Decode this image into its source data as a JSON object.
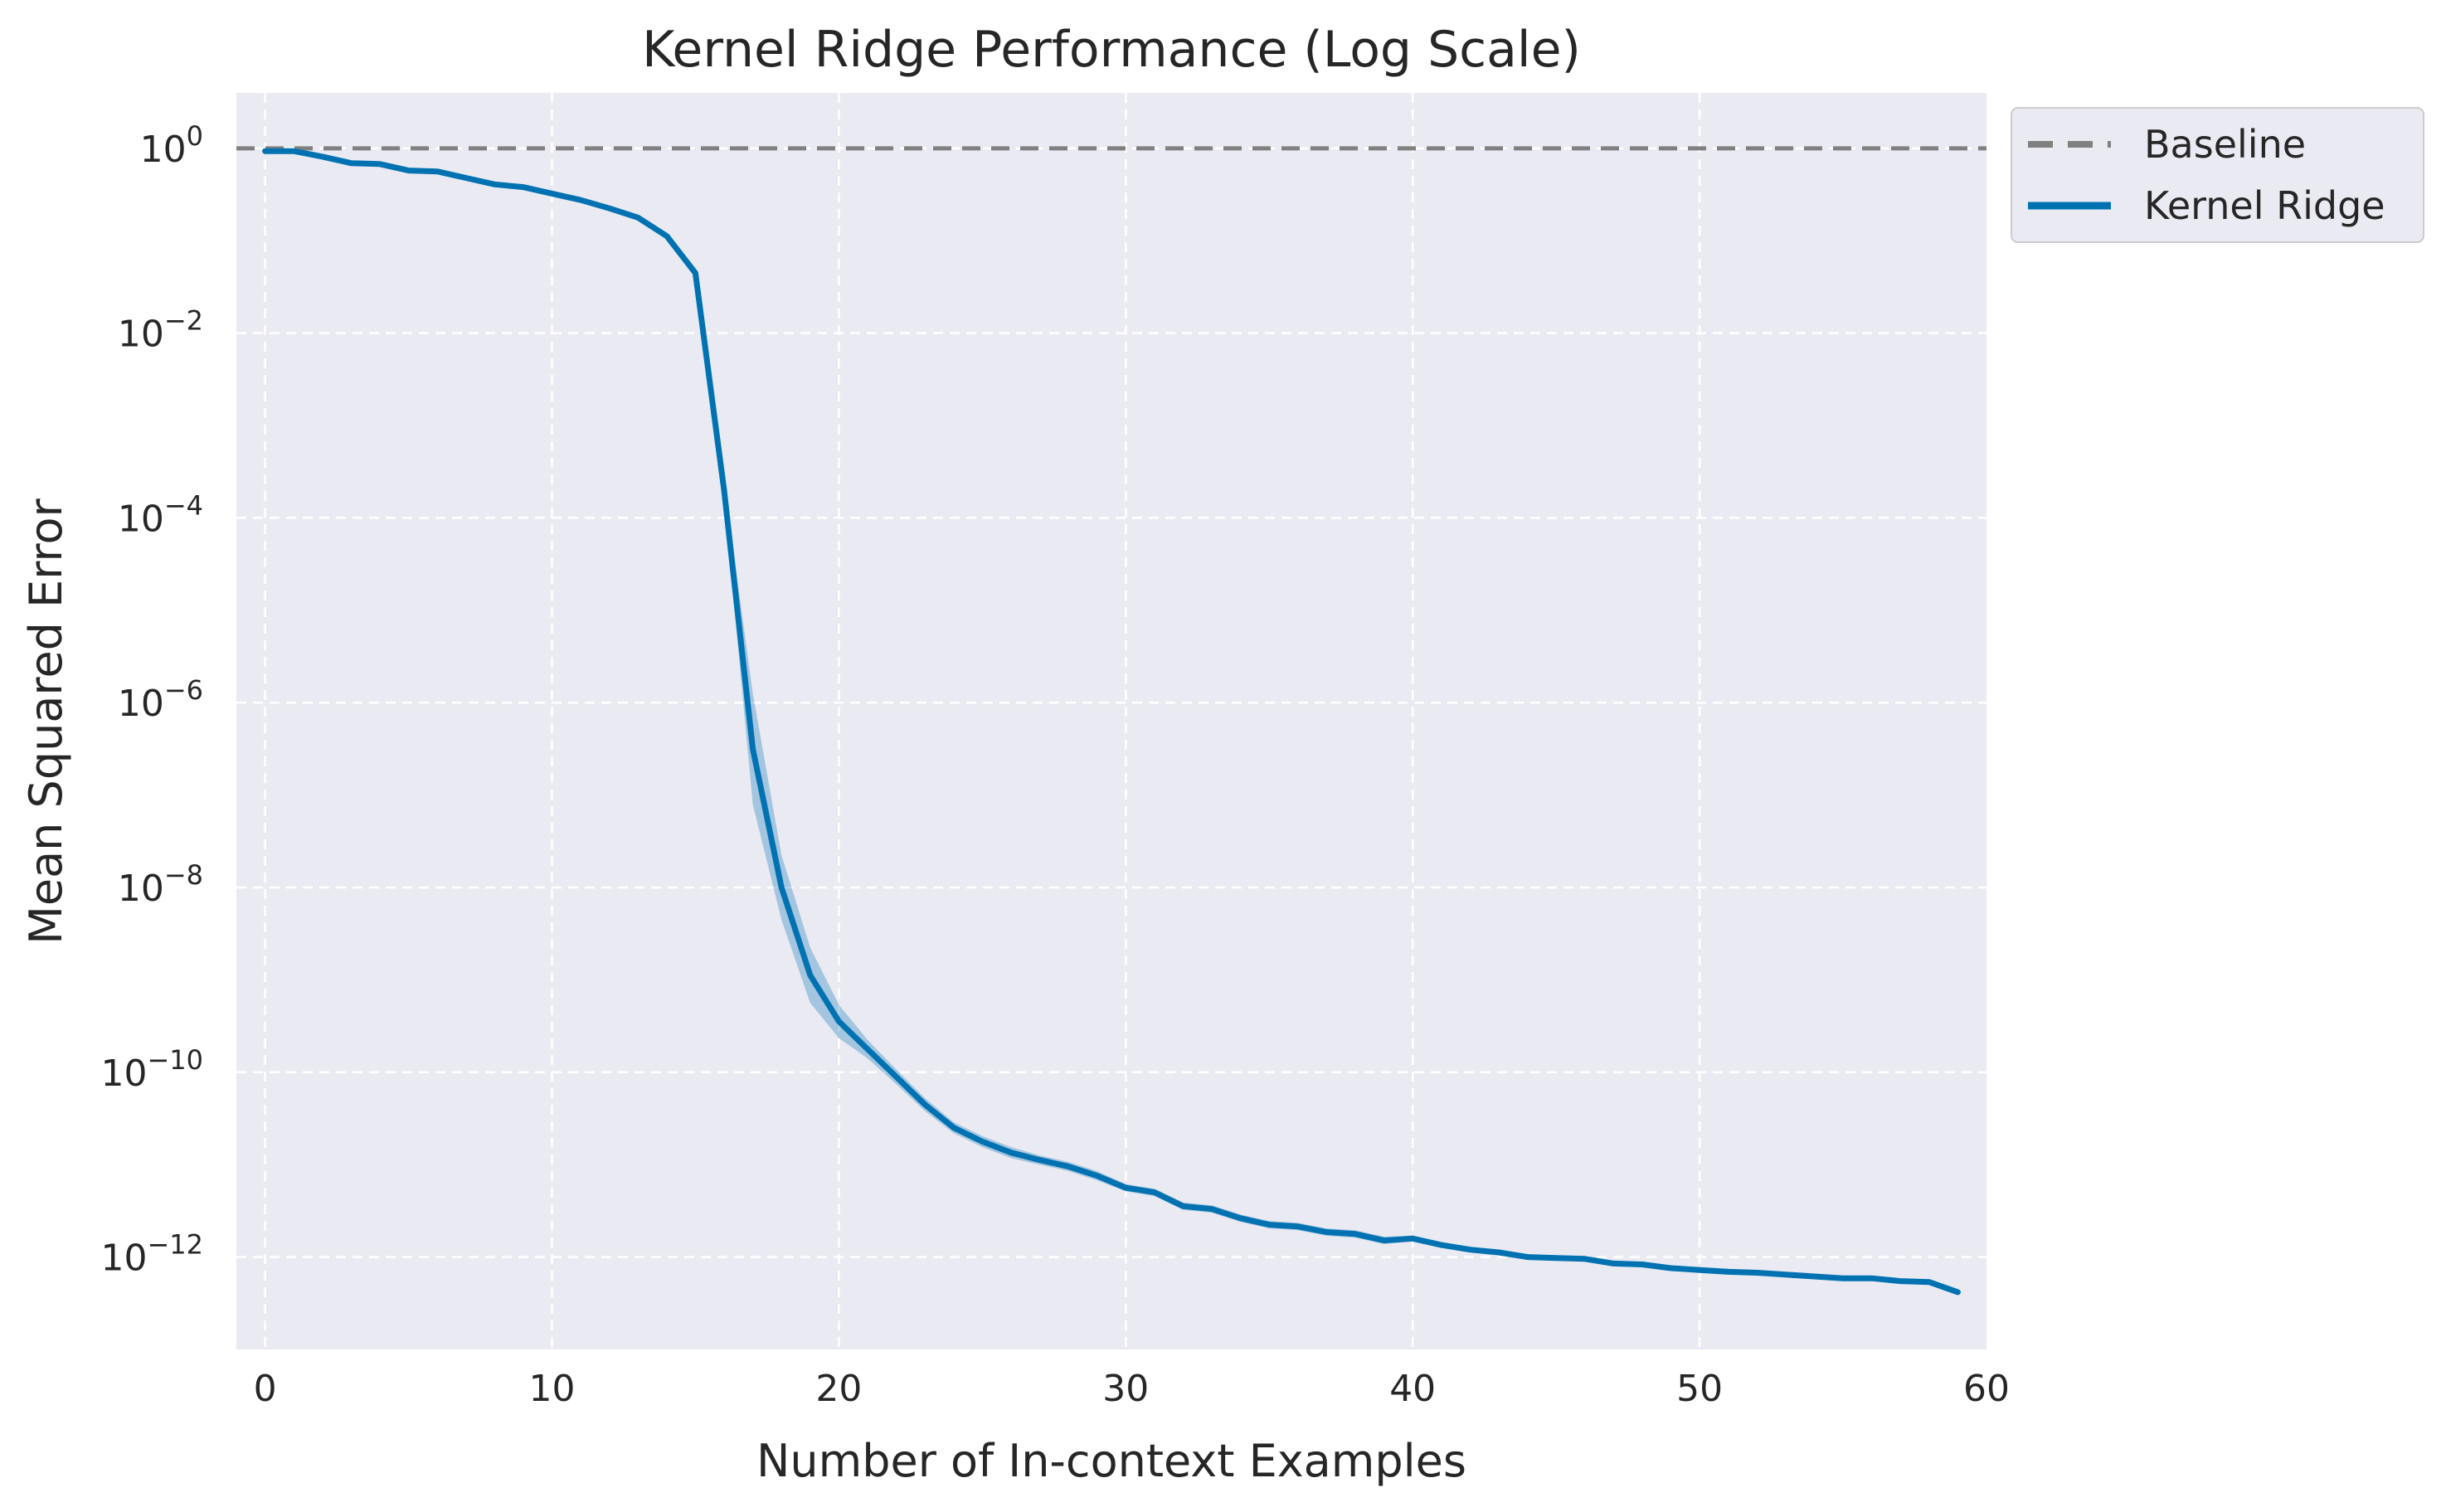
{
  "chart_data": {
    "type": "line",
    "title": "Kernel Ridge Performance (Log Scale)",
    "xlabel": "Number of In-context Examples",
    "ylabel": "Mean Squared Error",
    "xlim": [
      -1,
      60
    ],
    "ylim_log10": [
      -13.0,
      0.6
    ],
    "y_scale": "log",
    "grid": true,
    "legend_position": "outside-top-right",
    "x_ticks": [
      0,
      10,
      20,
      30,
      40,
      50,
      60
    ],
    "y_tick_exponents": [
      0,
      -2,
      -4,
      -6,
      -8,
      -10,
      -12
    ],
    "y_tick_base": "10",
    "y_tick_exponent_labels": [
      "0",
      "−2",
      "−4",
      "−6",
      "−8",
      "−10",
      "−12"
    ],
    "colors": {
      "baseline": "#808080",
      "kernel_ridge": "#0072b2",
      "plot_background": "#eaeaf2"
    },
    "baseline": {
      "name": "Baseline",
      "value": 1.0,
      "style": "dashed"
    },
    "series": [
      {
        "name": "Kernel Ridge",
        "x": [
          0,
          1,
          2,
          3,
          4,
          5,
          6,
          7,
          8,
          9,
          10,
          11,
          12,
          13,
          14,
          15,
          16,
          17,
          18,
          19,
          20,
          21,
          22,
          23,
          24,
          25,
          26,
          27,
          28,
          29,
          30,
          31,
          32,
          33,
          34,
          35,
          36,
          37,
          38,
          39,
          40,
          41,
          42,
          43,
          44,
          45,
          46,
          47,
          48,
          49,
          50,
          51,
          52,
          53,
          54,
          55,
          56,
          57,
          58,
          59
        ],
        "log10_y": [
          -0.03,
          -0.03,
          -0.09,
          -0.16,
          -0.17,
          -0.24,
          -0.25,
          -0.32,
          -0.39,
          -0.42,
          -0.49,
          -0.56,
          -0.65,
          -0.75,
          -0.95,
          -1.35,
          -3.7,
          -6.5,
          -8.0,
          -8.95,
          -9.45,
          -9.75,
          -10.05,
          -10.35,
          -10.6,
          -10.75,
          -10.87,
          -10.95,
          -11.02,
          -11.12,
          -11.25,
          -11.3,
          -11.45,
          -11.48,
          -11.58,
          -11.65,
          -11.67,
          -11.73,
          -11.75,
          -11.82,
          -11.8,
          -11.87,
          -11.92,
          -11.95,
          -12.0,
          -12.01,
          -12.02,
          -12.07,
          -12.08,
          -12.12,
          -12.14,
          -12.16,
          -12.17,
          -12.19,
          -12.21,
          -12.23,
          -12.23,
          -12.26,
          -12.27,
          -12.38
        ],
        "band_half_width_log10": [
          0.01,
          0.01,
          0.01,
          0.01,
          0.01,
          0.01,
          0.01,
          0.01,
          0.01,
          0.01,
          0.01,
          0.01,
          0.02,
          0.02,
          0.02,
          0.03,
          0.1,
          0.6,
          0.35,
          0.3,
          0.18,
          0.1,
          0.08,
          0.07,
          0.06,
          0.06,
          0.06,
          0.05,
          0.05,
          0.05,
          0.04,
          0.04,
          0.04,
          0.04,
          0.04,
          0.04,
          0.04,
          0.04,
          0.04,
          0.04,
          0.03,
          0.03,
          0.03,
          0.03,
          0.03,
          0.03,
          0.03,
          0.03,
          0.03,
          0.03,
          0.03,
          0.03,
          0.03,
          0.03,
          0.03,
          0.03,
          0.03,
          0.03,
          0.03,
          0.03
        ]
      }
    ]
  }
}
